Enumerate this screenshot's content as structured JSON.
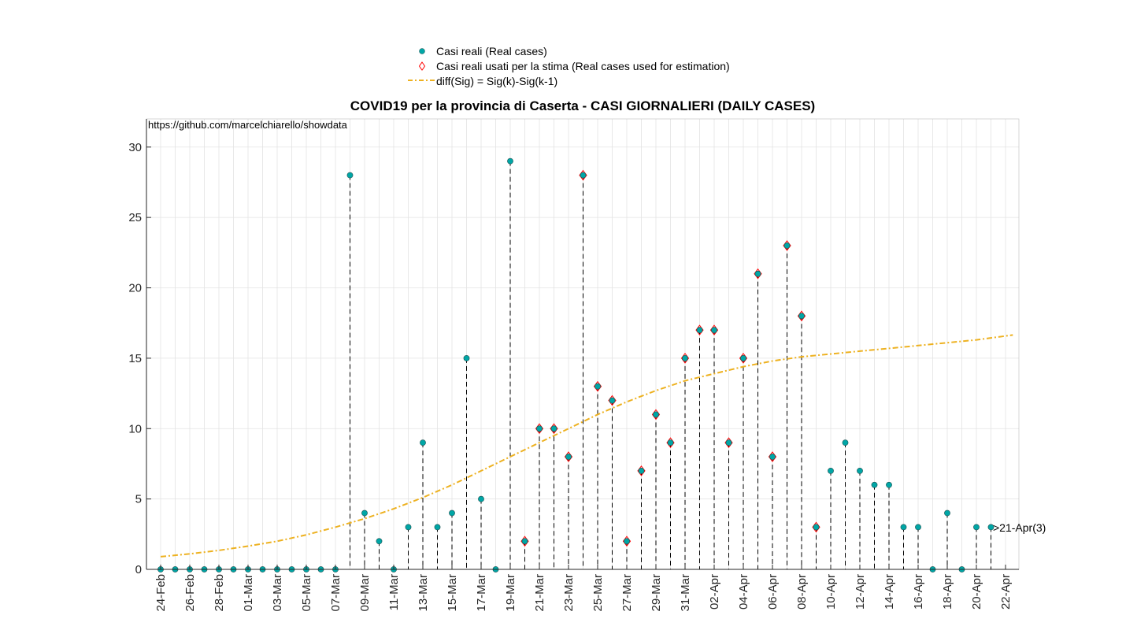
{
  "chart_data": {
    "type": "scatter",
    "title": "COVID19 per la provincia di Caserta - CASI GIORNALIERI (DAILY CASES)",
    "source_note": "https://github.com/marcelchiarello/showdata",
    "end_annotation": ">21-Apr(3)",
    "ylim": [
      0,
      32
    ],
    "yticks": [
      0,
      5,
      10,
      15,
      20,
      25,
      30
    ],
    "grid": true,
    "legend_position": "top-center",
    "x_tick_labels": [
      "24-Feb",
      "26-Feb",
      "28-Feb",
      "01-Mar",
      "03-Mar",
      "05-Mar",
      "07-Mar",
      "09-Mar",
      "11-Mar",
      "13-Mar",
      "15-Mar",
      "17-Mar",
      "19-Mar",
      "21-Mar",
      "23-Mar",
      "25-Mar",
      "27-Mar",
      "29-Mar",
      "31-Mar",
      "02-Apr",
      "04-Apr",
      "06-Apr",
      "08-Apr",
      "10-Apr",
      "12-Apr",
      "14-Apr",
      "16-Apr",
      "18-Apr",
      "20-Apr",
      "22-Apr"
    ],
    "dates": [
      "24-Feb",
      "25-Feb",
      "26-Feb",
      "27-Feb",
      "28-Feb",
      "29-Feb",
      "01-Mar",
      "02-Mar",
      "03-Mar",
      "04-Mar",
      "05-Mar",
      "06-Mar",
      "07-Mar",
      "08-Mar",
      "09-Mar",
      "10-Mar",
      "11-Mar",
      "12-Mar",
      "13-Mar",
      "14-Mar",
      "15-Mar",
      "16-Mar",
      "17-Mar",
      "18-Mar",
      "19-Mar",
      "20-Mar",
      "21-Mar",
      "22-Mar",
      "23-Mar",
      "24-Mar",
      "25-Mar",
      "26-Mar",
      "27-Mar",
      "28-Mar",
      "29-Mar",
      "30-Mar",
      "31-Mar",
      "01-Apr",
      "02-Apr",
      "03-Apr",
      "04-Apr",
      "05-Apr",
      "06-Apr",
      "07-Apr",
      "08-Apr",
      "09-Apr",
      "10-Apr",
      "11-Apr",
      "12-Apr",
      "13-Apr",
      "14-Apr",
      "15-Apr",
      "16-Apr",
      "17-Apr",
      "18-Apr",
      "19-Apr",
      "20-Apr",
      "21-Apr"
    ],
    "series": [
      {
        "name": "Casi reali (Real cases)",
        "color": "#00a6a6",
        "values": [
          0,
          0,
          0,
          0,
          0,
          0,
          0,
          0,
          0,
          0,
          0,
          0,
          0,
          28,
          4,
          2,
          0,
          3,
          9,
          3,
          4,
          15,
          5,
          0,
          29,
          2,
          10,
          10,
          8,
          28,
          13,
          12,
          2,
          7,
          11,
          9,
          15,
          17,
          17,
          9,
          15,
          21,
          8,
          23,
          18,
          3,
          7,
          9,
          7,
          6,
          6,
          3,
          3,
          0,
          4,
          0,
          3,
          3
        ]
      },
      {
        "name": "Casi reali usati per la stima (Real cases used for estimation)",
        "color": "#ff0000",
        "start_index": 25,
        "end_index": 45
      },
      {
        "name": "diff(Sig) = Sig(k)-Sig(k-1)",
        "color": "#edb120",
        "curve_x": [
          0,
          2,
          4,
          6,
          8,
          10,
          12,
          14,
          16,
          18,
          20,
          22,
          24,
          26,
          28,
          30,
          32,
          34,
          36,
          38,
          40,
          42,
          44,
          46,
          48,
          50,
          52,
          54,
          56,
          58.5
        ],
        "curve_y": [
          0.9,
          1.1,
          1.35,
          1.65,
          2.0,
          2.45,
          3.0,
          3.6,
          4.3,
          5.1,
          6.0,
          7.0,
          8.0,
          9.0,
          10.0,
          11.0,
          11.9,
          12.7,
          13.4,
          13.9,
          14.4,
          14.8,
          15.1,
          15.3,
          15.5,
          15.7,
          15.9,
          16.1,
          16.3,
          16.65
        ]
      }
    ]
  }
}
